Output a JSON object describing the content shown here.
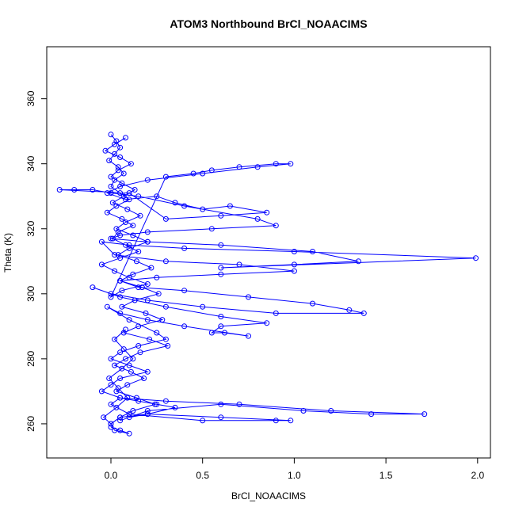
{
  "chart_data": {
    "type": "scatter",
    "title": "ATOM3 Northbound BrCl_NOAACIMS",
    "xlabel": "BrCl_NOAACIMS",
    "ylabel": "Theta (K)",
    "xlim": [
      -0.35,
      2.07
    ],
    "ylim": [
      249.5,
      376
    ],
    "x_ticks": [
      0.0,
      0.5,
      1.0,
      1.5,
      2.0
    ],
    "x_tick_labels": [
      "0.0",
      "0.5",
      "1.0",
      "1.5",
      "2.0"
    ],
    "y_ticks": [
      260,
      280,
      300,
      320,
      340,
      360
    ],
    "y_tick_labels": [
      "260",
      "280",
      "300",
      "320",
      "340",
      "360"
    ],
    "grid": false,
    "legend": "none",
    "series": [
      {
        "color": "#0000ff",
        "marker": "open-circle",
        "connected": true,
        "x": [
          0.0,
          0.03,
          0.05,
          0.02,
          -0.01,
          0.04,
          0.07,
          0.02,
          0.0,
          0.05,
          0.1,
          0.03,
          -0.02,
          0.06,
          0.12,
          0.04,
          0.01,
          0.08,
          0.15,
          0.05,
          -0.05,
          0.02,
          0.1,
          0.2,
          0.06,
          0.0,
          0.3,
          0.45,
          0.55,
          0.7,
          0.9,
          0.98,
          0.8,
          0.5,
          0.2,
          0.05,
          -0.02,
          0.08,
          0.25,
          0.35,
          0.5,
          0.65,
          0.85,
          0.6,
          0.3,
          0.1,
          -0.28,
          -0.2,
          -0.1,
          0.0,
          0.15,
          0.4,
          0.8,
          0.9,
          0.55,
          0.2,
          0.05,
          0.0,
          0.2,
          0.6,
          1.1,
          1.35,
          1.0,
          0.6,
          1.99,
          1.0,
          0.4,
          0.1,
          -0.05,
          0.02,
          0.3,
          0.7,
          1.0,
          0.6,
          0.25,
          0.05,
          0.15,
          0.4,
          0.75,
          1.1,
          1.3,
          1.38,
          0.9,
          0.5,
          0.2,
          0.0,
          -0.1,
          0.05,
          0.3,
          0.6,
          0.85,
          0.6,
          0.55,
          0.62,
          0.75,
          0.4,
          0.2,
          0.05,
          -0.02,
          0.1,
          0.25,
          0.3,
          0.15,
          0.05,
          0.0,
          0.1,
          0.2,
          0.05,
          0.0,
          -0.05,
          0.05,
          0.15,
          0.25,
          0.35,
          0.2,
          0.1,
          0.05,
          0.2,
          0.6,
          1.05,
          1.42,
          1.71,
          1.2,
          0.7,
          0.3,
          0.05,
          0.0,
          0.1,
          0.5,
          0.9,
          0.98,
          0.6,
          0.2,
          0.05,
          0.0,
          0.02,
          0.1,
          0.05,
          0.0
        ],
        "y": [
          349,
          347,
          345,
          343,
          341,
          339,
          337,
          335,
          333,
          331,
          329,
          327,
          325,
          323,
          321,
          319,
          317,
          315,
          313,
          311,
          309,
          307,
          305,
          303,
          301,
          299,
          336,
          337,
          338,
          339,
          340,
          340,
          339,
          337,
          335,
          333,
          331,
          329,
          330,
          328,
          326,
          327,
          325,
          324,
          323,
          331,
          332,
          332,
          332,
          331,
          330,
          327,
          323,
          321,
          320,
          319,
          318,
          317,
          316,
          315,
          313,
          310,
          309,
          308,
          311,
          313,
          314,
          315,
          316,
          312,
          310,
          309,
          307,
          306,
          305,
          304,
          302,
          301,
          299,
          297,
          295,
          294,
          294,
          296,
          298,
          300,
          302,
          299,
          296,
          293,
          291,
          290,
          288,
          288,
          287,
          290,
          292,
          294,
          296,
          292,
          288,
          286,
          284,
          282,
          280,
          278,
          276,
          274,
          272,
          270,
          268,
          267,
          266,
          265,
          263,
          262,
          261,
          264,
          266,
          264,
          263,
          263,
          264,
          266,
          267,
          268,
          266,
          263,
          261,
          261,
          261,
          262,
          263,
          262,
          260,
          258,
          257,
          258,
          259
        ]
      },
      {
        "color": "#0000ff",
        "marker": "open-circle",
        "connected": true,
        "x": [
          0.08,
          0.02,
          -0.03,
          0.05,
          0.11,
          0.04,
          0.0,
          0.06,
          0.13,
          0.07,
          0.01,
          0.09,
          0.16,
          0.08,
          0.03,
          0.12,
          0.2,
          0.1,
          0.04,
          0.14,
          0.22,
          0.12,
          0.05,
          0.17,
          0.26,
          0.13,
          0.06,
          0.19,
          0.28,
          0.15,
          0.07,
          0.21,
          0.31,
          0.16,
          0.08,
          0.02,
          0.11,
          0.18,
          0.09,
          0.03,
          0.14,
          0.24,
          0.12,
          0.05,
          0.0,
          -0.04,
          0.03,
          0.09,
          0.04,
          -0.01,
          0.06,
          0.12,
          0.07,
          0.02,
          0.08
        ],
        "y": [
          348,
          346,
          344,
          342,
          340,
          338,
          336,
          334,
          332,
          330,
          328,
          326,
          324,
          322,
          320,
          318,
          316,
          314,
          312,
          310,
          308,
          306,
          304,
          302,
          300,
          298,
          296,
          294,
          292,
          290,
          288,
          286,
          284,
          282,
          280,
          278,
          276,
          274,
          272,
          270,
          268,
          266,
          264,
          262,
          260,
          262,
          265,
          268,
          271,
          274,
          277,
          280,
          283,
          286,
          289
        ]
      }
    ]
  }
}
